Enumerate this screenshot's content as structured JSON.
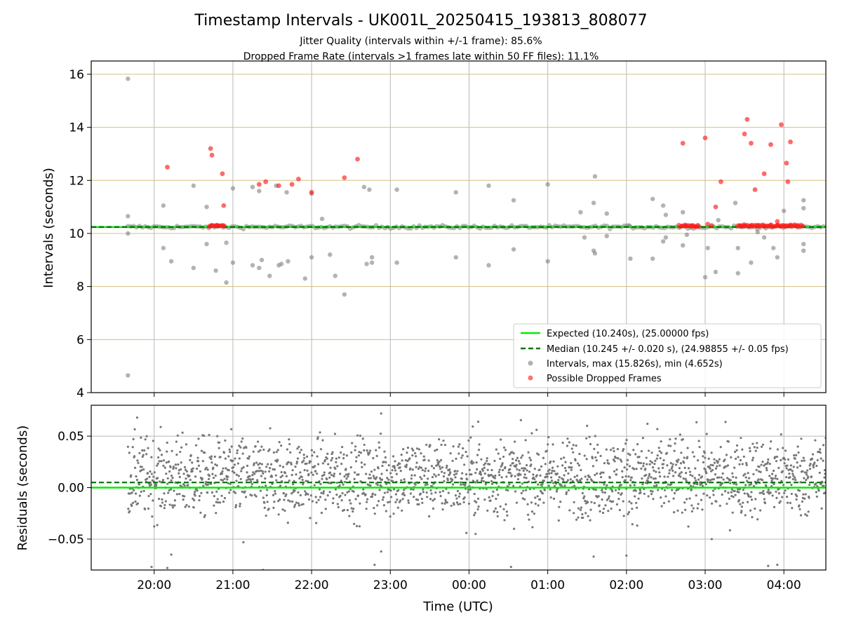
{
  "chart_data": [
    {
      "type": "scatter",
      "title": "Timestamp Intervals - UK001L_20250415_193813_808077",
      "subtitle_lines": [
        "Jitter Quality (intervals within +/-1 frame): 85.6%",
        "Dropped Frame Rate (intervals >1 frames late within 50 FF files): 11.1%"
      ],
      "ylabel": "Intervals (seconds)",
      "xlim": [
        "19:12",
        "04:32"
      ],
      "ylim": [
        4,
        16.5
      ],
      "yticks": [
        4,
        6,
        8,
        10,
        12,
        14,
        16
      ],
      "ytick_labels": [
        "4",
        "6",
        "8",
        "10",
        "12",
        "14",
        "16"
      ],
      "grid": {
        "x": true,
        "y": true,
        "y_color": "#d4bf80"
      },
      "legend_position": "lower-right",
      "colors": {
        "expected": "#00ee00",
        "median": "#007a00",
        "intervals": "#808080",
        "dropped": "#ff1a1a"
      },
      "series": [
        {
          "name": "Expected (10.240s), (25.00000 fps)",
          "kind": "hline",
          "y": 10.24
        },
        {
          "name": "Median (10.245 +/- 0.020 s), (24.98855 +/- 0.05 fps)",
          "kind": "hline-dashed",
          "y": 10.245
        },
        {
          "name": "Intervals, max (15.826s), min (4.652s)",
          "kind": "points",
          "band": {
            "from": "19:40",
            "to": "04:32",
            "center": 10.245,
            "spread": 0.05
          },
          "outliers": [
            [
              "19:40",
              15.83
            ],
            [
              "19:40",
              4.65
            ],
            [
              "19:40",
              10.65
            ],
            [
              "19:40",
              10.0
            ],
            [
              "20:07",
              11.05
            ],
            [
              "20:07",
              9.45
            ],
            [
              "20:13",
              8.95
            ],
            [
              "20:30",
              11.8
            ],
            [
              "20:30",
              8.7
            ],
            [
              "20:40",
              11.0
            ],
            [
              "20:40",
              9.6
            ],
            [
              "20:47",
              8.6
            ],
            [
              "20:55",
              8.15
            ],
            [
              "20:55",
              9.65
            ],
            [
              "21:00",
              11.7
            ],
            [
              "21:00",
              8.9
            ],
            [
              "21:15",
              11.75
            ],
            [
              "21:15",
              8.8
            ],
            [
              "21:20",
              11.6
            ],
            [
              "21:20",
              8.7
            ],
            [
              "21:22",
              9.0
            ],
            [
              "21:28",
              8.4
            ],
            [
              "21:33",
              11.8
            ],
            [
              "21:35",
              8.8
            ],
            [
              "21:37",
              8.85
            ],
            [
              "21:41",
              11.55
            ],
            [
              "21:42",
              8.95
            ],
            [
              "21:55",
              8.3
            ],
            [
              "22:00",
              11.5
            ],
            [
              "22:00",
              9.1
            ],
            [
              "22:08",
              10.55
            ],
            [
              "22:14",
              9.2
            ],
            [
              "22:18",
              8.4
            ],
            [
              "22:25",
              7.7
            ],
            [
              "22:40",
              11.75
            ],
            [
              "22:44",
              11.65
            ],
            [
              "22:42",
              8.85
            ],
            [
              "22:46",
              9.1
            ],
            [
              "22:46",
              8.9
            ],
            [
              "23:05",
              11.65
            ],
            [
              "23:05",
              8.9
            ],
            [
              "23:50",
              11.55
            ],
            [
              "23:50",
              9.1
            ],
            [
              "00:15",
              11.8
            ],
            [
              "00:15",
              8.8
            ],
            [
              "00:34",
              11.25
            ],
            [
              "00:34",
              9.4
            ],
            [
              "01:00",
              11.85
            ],
            [
              "01:00",
              8.95
            ],
            [
              "01:25",
              10.8
            ],
            [
              "01:28",
              9.85
            ],
            [
              "01:35",
              11.15
            ],
            [
              "01:35",
              9.35
            ],
            [
              "01:36",
              9.25
            ],
            [
              "01:36",
              12.15
            ],
            [
              "01:45",
              10.75
            ],
            [
              "01:45",
              9.9
            ],
            [
              "02:02",
              10.3
            ],
            [
              "02:03",
              9.05
            ],
            [
              "02:20",
              11.3
            ],
            [
              "02:20",
              9.05
            ],
            [
              "02:28",
              11.05
            ],
            [
              "02:28",
              9.7
            ],
            [
              "02:30",
              10.7
            ],
            [
              "02:30",
              9.85
            ],
            [
              "02:43",
              10.8
            ],
            [
              "02:43",
              9.55
            ],
            [
              "02:46",
              9.95
            ],
            [
              "03:00",
              8.35
            ],
            [
              "03:02",
              9.45
            ],
            [
              "03:08",
              8.55
            ],
            [
              "03:10",
              10.5
            ],
            [
              "03:23",
              11.15
            ],
            [
              "03:25",
              9.45
            ],
            [
              "03:25",
              8.5
            ],
            [
              "03:35",
              8.9
            ],
            [
              "03:40",
              10.05
            ],
            [
              "03:45",
              9.85
            ],
            [
              "03:52",
              9.45
            ],
            [
              "03:55",
              9.1
            ],
            [
              "04:00",
              10.85
            ],
            [
              "04:15",
              11.25
            ],
            [
              "04:15",
              10.95
            ],
            [
              "04:15",
              9.6
            ],
            [
              "04:15",
              9.35
            ]
          ]
        },
        {
          "name": "Possible Dropped Frames",
          "kind": "points",
          "points": [
            [
              "20:10",
              12.5
            ],
            [
              "20:43",
              13.2
            ],
            [
              "20:44",
              12.95
            ],
            [
              "20:52",
              12.25
            ],
            [
              "20:53",
              11.05
            ],
            [
              "21:20",
              11.85
            ],
            [
              "21:25",
              11.95
            ],
            [
              "21:35",
              11.8
            ],
            [
              "21:45",
              11.85
            ],
            [
              "21:50",
              12.05
            ],
            [
              "22:00",
              11.55
            ],
            [
              "22:25",
              12.1
            ],
            [
              "22:35",
              12.8
            ],
            [
              "20:43",
              10.27
            ],
            [
              "20:48",
              10.3
            ],
            [
              "20:53",
              10.28
            ],
            [
              "02:43",
              13.4
            ],
            [
              "03:00",
              13.6
            ],
            [
              "03:08",
              11.0
            ],
            [
              "03:12",
              11.95
            ],
            [
              "03:30",
              13.75
            ],
            [
              "03:32",
              14.3
            ],
            [
              "03:35",
              13.4
            ],
            [
              "03:38",
              11.65
            ],
            [
              "03:45",
              12.25
            ],
            [
              "03:50",
              13.35
            ],
            [
              "03:55",
              10.45
            ],
            [
              "03:58",
              14.1
            ],
            [
              "04:02",
              12.65
            ],
            [
              "04:03",
              11.95
            ],
            [
              "04:05",
              13.45
            ],
            [
              "02:45",
              10.28
            ],
            [
              "02:50",
              10.3
            ],
            [
              "02:55",
              10.27
            ],
            [
              "03:02",
              10.35
            ],
            [
              "03:05",
              10.3
            ],
            [
              "03:27",
              10.3
            ],
            [
              "03:30",
              10.28
            ],
            [
              "03:35",
              10.29
            ],
            [
              "03:40",
              10.3
            ],
            [
              "03:45",
              10.28
            ],
            [
              "03:50",
              10.31
            ],
            [
              "03:55",
              10.29
            ],
            [
              "04:00",
              10.3
            ],
            [
              "04:05",
              10.32
            ],
            [
              "04:10",
              10.28
            ]
          ],
          "dense_band": [
            [
              "20:42",
              "20:54"
            ],
            [
              "02:40",
              "02:55"
            ],
            [
              "03:25",
              "04:15"
            ]
          ]
        }
      ]
    },
    {
      "type": "scatter",
      "ylabel": "Residuals (seconds)",
      "xlabel": "Time (UTC)",
      "xlim": [
        "19:12",
        "04:32"
      ],
      "ylim": [
        -0.08,
        0.08
      ],
      "yticks": [
        -0.05,
        0,
        0.05
      ],
      "ytick_labels": [
        "−0.05",
        "0.00",
        "0.05"
      ],
      "xticks": [
        "20:00",
        "21:00",
        "22:00",
        "23:00",
        "00:00",
        "01:00",
        "02:00",
        "03:00",
        "04:00"
      ],
      "grid": {
        "x": true,
        "y": true
      },
      "series": [
        {
          "name": "",
          "kind": "hline",
          "y": 0.0
        },
        {
          "name": "",
          "kind": "hline-dashed",
          "y": 0.005
        },
        {
          "name": "",
          "kind": "points",
          "color": "#777777",
          "band": {
            "from": "19:40",
            "to": "04:32",
            "center": 0.01,
            "spread": 0.02
          },
          "outliers": [
            [
              "19:47",
              0.068
            ],
            [
              "22:53",
              0.072
            ],
            [
              "19:58",
              -0.077
            ],
            [
              "20:10",
              -0.078
            ],
            [
              "20:13",
              -0.065
            ],
            [
              "21:08",
              -0.053
            ],
            [
              "21:23",
              -0.08
            ],
            [
              "22:48",
              -0.075
            ],
            [
              "22:53",
              -0.062
            ],
            [
              "23:58",
              -0.044
            ],
            [
              "00:05",
              -0.045
            ],
            [
              "00:32",
              -0.077
            ],
            [
              "01:35",
              -0.067
            ],
            [
              "02:00",
              -0.066
            ],
            [
              "03:05",
              -0.05
            ],
            [
              "03:48",
              -0.076
            ],
            [
              "03:55",
              -0.075
            ],
            [
              "02:16",
              0.062
            ],
            [
              "00:07",
              0.064
            ],
            [
              "01:30",
              0.06
            ]
          ]
        }
      ]
    }
  ],
  "legend": {
    "items": [
      {
        "label": "Expected (10.240s), (25.00000 fps)",
        "kind": "line",
        "color": "#00ee00"
      },
      {
        "label": "Median (10.245 +/- 0.020 s), (24.98855 +/- 0.05 fps)",
        "kind": "dash",
        "color": "#007a00"
      },
      {
        "label": "Intervals, max (15.826s), min (4.652s)",
        "kind": "dot",
        "color": "#909090"
      },
      {
        "label": "Possible Dropped Frames",
        "kind": "dot",
        "color": "#ff3333"
      }
    ]
  }
}
